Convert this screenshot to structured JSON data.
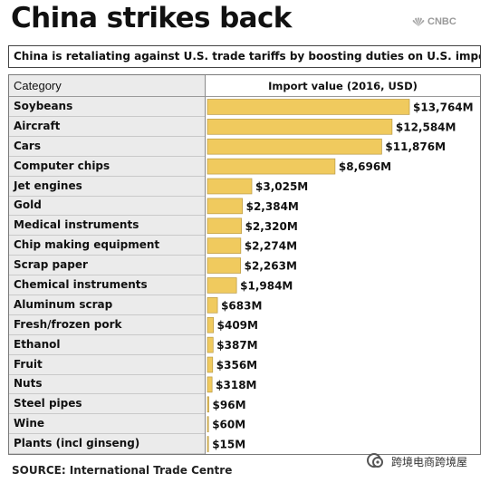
{
  "header": {
    "title": "China strikes back",
    "brand": "CNBC",
    "brand_icon": "peacock-logo-icon"
  },
  "subtitle": "China is retaliating against U.S. trade tariffs by boosting duties on U.S. imports.",
  "footer": {
    "source": "SOURCE: International Trade Centre",
    "watermark": "跨境电商跨境屋",
    "watermark_icon": "wechat-official-account-icon"
  },
  "colors": {
    "bar": "#f0ca5e",
    "category_background": "#ebebeb"
  },
  "chart_data": {
    "type": "bar",
    "orientation": "horizontal",
    "title": "China strikes back",
    "subtitle": "China is retaliating against U.S. trade tariffs by boosting duties on U.S. imports.",
    "category_header": "Category",
    "value_header": "Import value (2016, USD)",
    "unit": "USD millions",
    "categories": [
      "Soybeans",
      "Aircraft",
      "Cars",
      "Computer chips",
      "Jet engines",
      "Gold",
      "Medical instruments",
      "Chip making equipment",
      "Scrap paper",
      "Chemical instruments",
      "Aluminum scrap",
      "Fresh/frozen pork",
      "Ethanol",
      "Fruit",
      "Nuts",
      "Steel pipes",
      "Wine",
      "Plants (incl ginseng)"
    ],
    "values": [
      13764,
      12584,
      11876,
      8696,
      3025,
      2384,
      2320,
      2274,
      2263,
      1984,
      683,
      409,
      387,
      356,
      318,
      96,
      60,
      15
    ],
    "value_labels": [
      "$13,764M",
      "$12,584M",
      "$11,876M",
      "$8,696M",
      "$3,025M",
      "$2,384M",
      "$2,320M",
      "$2,274M",
      "$2,263M",
      "$1,984M",
      "$683M",
      "$409M",
      "$387M",
      "$356M",
      "$318M",
      "$96M",
      "$60M",
      "$15M"
    ],
    "xlim": [
      0,
      13764
    ],
    "grid": false,
    "legend": "none"
  }
}
